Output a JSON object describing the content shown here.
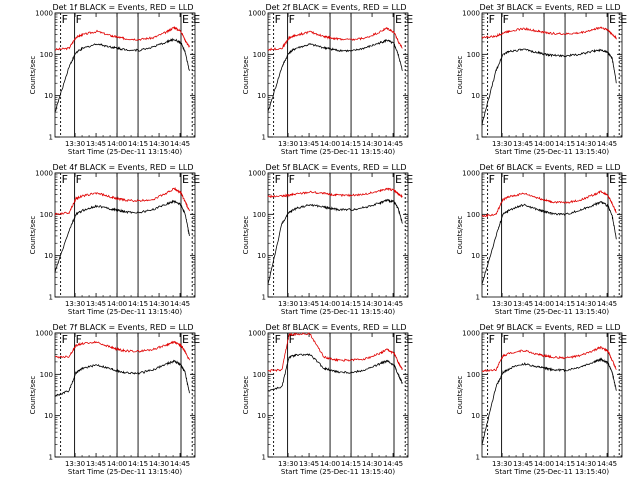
{
  "colors": {
    "events": "#000000",
    "lld": "#e00000",
    "axis": "#000000",
    "background": "#ffffff"
  },
  "shared": {
    "xlabel": "Start Time (25-Dec-11 13:15:40)",
    "ylabel": "Counts/sec",
    "xtick_labels": [
      "13:30",
      "13:45",
      "14:00",
      "14:15",
      "14:30",
      "14:45"
    ],
    "xtick_minutes": [
      14.33,
      29.33,
      44.33,
      59.33,
      74.33,
      89.33
    ],
    "x_range_minutes": [
      0,
      100
    ],
    "ytick_labels": [
      "1",
      "10",
      "100",
      "1000"
    ],
    "ylim": [
      1,
      1000
    ],
    "yscale": "log",
    "markers": [
      "F",
      "F",
      "E",
      "E"
    ],
    "marker_minutes": [
      4,
      14,
      90,
      98
    ]
  },
  "chart_data": [
    {
      "type": "line",
      "title": "Det 1f BLACK = Events, RED = LLD",
      "xlabel": "Start Time (25-Dec-11 13:15:40)",
      "ylabel": "Counts/sec",
      "yscale": "log",
      "ylim": [
        1,
        1000
      ],
      "x": [
        0,
        10,
        15,
        20,
        30,
        40,
        45,
        50,
        60,
        70,
        80,
        85,
        90,
        93,
        96
      ],
      "series": [
        {
          "name": "RED = LLD",
          "values": [
            130,
            140,
            260,
            300,
            360,
            280,
            260,
            240,
            230,
            250,
            350,
            450,
            360,
            220,
            150
          ]
        },
        {
          "name": "BLACK = Events",
          "values": [
            4,
            50,
            110,
            140,
            180,
            150,
            140,
            130,
            125,
            150,
            200,
            230,
            190,
            110,
            40
          ]
        }
      ]
    },
    {
      "type": "line",
      "title": "Det 2f BLACK = Events, RED = LLD",
      "xlabel": "Start Time (25-Dec-11 13:15:40)",
      "ylabel": "Counts/sec",
      "yscale": "log",
      "ylim": [
        1,
        1000
      ],
      "x": [
        0,
        10,
        15,
        20,
        30,
        40,
        45,
        50,
        60,
        70,
        80,
        85,
        90,
        93,
        96
      ],
      "series": [
        {
          "name": "RED = LLD",
          "values": [
            130,
            140,
            250,
            290,
            350,
            270,
            250,
            235,
            225,
            250,
            350,
            430,
            340,
            210,
            140
          ]
        },
        {
          "name": "BLACK = Events",
          "values": [
            4,
            50,
            110,
            140,
            175,
            145,
            135,
            125,
            120,
            145,
            190,
            220,
            180,
            100,
            40
          ]
        }
      ]
    },
    {
      "type": "line",
      "title": "Det 3f BLACK = Events, RED = LLD",
      "xlabel": "Start Time (25-Dec-11 13:15:40)",
      "ylabel": "Counts/sec",
      "yscale": "log",
      "ylim": [
        1,
        1000
      ],
      "x": [
        0,
        10,
        15,
        20,
        30,
        40,
        45,
        50,
        60,
        70,
        80,
        85,
        90,
        93,
        96
      ],
      "series": [
        {
          "name": "RED = LLD",
          "values": [
            260,
            270,
            330,
            370,
            420,
            360,
            340,
            320,
            310,
            330,
            400,
            450,
            390,
            300,
            250
          ]
        },
        {
          "name": "BLACK = Events",
          "values": [
            2,
            40,
            100,
            120,
            130,
            110,
            100,
            95,
            92,
            100,
            120,
            130,
            110,
            80,
            20
          ]
        }
      ]
    },
    {
      "type": "line",
      "title": "Det 4f BLACK = Events, RED = LLD",
      "xlabel": "Start Time (25-Dec-11 13:15:40)",
      "ylabel": "Counts/sec",
      "yscale": "log",
      "ylim": [
        1,
        1000
      ],
      "x": [
        0,
        10,
        15,
        20,
        30,
        40,
        45,
        50,
        60,
        70,
        80,
        85,
        90,
        93,
        96
      ],
      "series": [
        {
          "name": "RED = LLD",
          "values": [
            100,
            110,
            240,
            280,
            330,
            260,
            240,
            220,
            210,
            230,
            330,
            420,
            330,
            200,
            120
          ]
        },
        {
          "name": "BLACK = Events",
          "values": [
            4,
            40,
            100,
            125,
            160,
            135,
            125,
            115,
            110,
            130,
            180,
            210,
            170,
            100,
            30
          ]
        }
      ]
    },
    {
      "type": "line",
      "title": "Det 5f BLACK = Events, RED = LLD",
      "xlabel": "Start Time (25-Dec-11 13:15:40)",
      "ylabel": "Counts/sec",
      "yscale": "log",
      "ylim": [
        1,
        1000
      ],
      "x": [
        0,
        10,
        15,
        20,
        30,
        40,
        45,
        50,
        60,
        70,
        80,
        85,
        90,
        93,
        96
      ],
      "series": [
        {
          "name": "RED = LLD",
          "values": [
            270,
            275,
            290,
            310,
            350,
            320,
            300,
            290,
            290,
            310,
            370,
            420,
            380,
            310,
            270
          ]
        },
        {
          "name": "BLACK = Events",
          "values": [
            2,
            60,
            110,
            140,
            170,
            150,
            140,
            130,
            130,
            150,
            190,
            220,
            200,
            140,
            60
          ]
        }
      ]
    },
    {
      "type": "line",
      "title": "Det 6f BLACK = Events, RED = LLD",
      "xlabel": "Start Time (25-Dec-11 13:15:40)",
      "ylabel": "Counts/sec",
      "yscale": "log",
      "ylim": [
        1,
        1000
      ],
      "x": [
        0,
        10,
        15,
        20,
        30,
        40,
        45,
        50,
        60,
        70,
        80,
        85,
        90,
        93,
        96
      ],
      "series": [
        {
          "name": "RED = LLD",
          "values": [
            90,
            100,
            230,
            270,
            320,
            250,
            220,
            200,
            190,
            220,
            300,
            360,
            290,
            180,
            110
          ]
        },
        {
          "name": "BLACK = Events",
          "values": [
            2,
            30,
            100,
            130,
            170,
            130,
            115,
            105,
            100,
            125,
            170,
            200,
            160,
            90,
            25
          ]
        }
      ]
    },
    {
      "type": "line",
      "title": "Det 7f BLACK = Events, RED = LLD",
      "xlabel": "Start Time (25-Dec-11 13:15:40)",
      "ylabel": "Counts/sec",
      "yscale": "log",
      "ylim": [
        1,
        1000
      ],
      "x": [
        0,
        10,
        15,
        20,
        30,
        40,
        45,
        50,
        60,
        70,
        80,
        85,
        90,
        93,
        96
      ],
      "series": [
        {
          "name": "RED = LLD",
          "values": [
            260,
            270,
            500,
            560,
            600,
            450,
            400,
            370,
            360,
            400,
            520,
            600,
            500,
            350,
            220
          ]
        },
        {
          "name": "BLACK = Events",
          "values": [
            30,
            40,
            110,
            140,
            170,
            135,
            120,
            110,
            105,
            130,
            180,
            210,
            170,
            110,
            35
          ]
        }
      ]
    },
    {
      "type": "line",
      "title": "Det 8f BLACK = Events, RED = LLD",
      "xlabel": "Start Time (25-Dec-11 13:15:40)",
      "ylabel": "Counts/sec",
      "yscale": "log",
      "ylim": [
        1,
        1000
      ],
      "x": [
        0,
        10,
        15,
        20,
        30,
        40,
        45,
        50,
        60,
        70,
        80,
        85,
        90,
        93,
        96
      ],
      "series": [
        {
          "name": "RED = LLD",
          "values": [
            120,
            130,
            900,
            950,
            950,
            260,
            240,
            220,
            220,
            240,
            320,
            400,
            320,
            200,
            130
          ]
        },
        {
          "name": "BLACK = Events",
          "values": [
            40,
            50,
            260,
            290,
            300,
            140,
            125,
            115,
            110,
            130,
            180,
            210,
            170,
            100,
            60
          ]
        }
      ]
    },
    {
      "type": "line",
      "title": "Det 9f BLACK = Events, RED = LLD",
      "xlabel": "Start Time (25-Dec-11 13:15:40)",
      "ylabel": "Counts/sec",
      "yscale": "log",
      "ylim": [
        1,
        1000
      ],
      "x": [
        0,
        10,
        15,
        20,
        30,
        40,
        45,
        50,
        60,
        70,
        80,
        85,
        90,
        93,
        96
      ],
      "series": [
        {
          "name": "RED = LLD",
          "values": [
            120,
            130,
            280,
            330,
            380,
            300,
            280,
            260,
            250,
            280,
            380,
            450,
            360,
            220,
            130
          ]
        },
        {
          "name": "BLACK = Events",
          "values": [
            2,
            50,
            110,
            140,
            180,
            150,
            140,
            130,
            125,
            150,
            200,
            230,
            190,
            110,
            40
          ]
        }
      ]
    }
  ]
}
